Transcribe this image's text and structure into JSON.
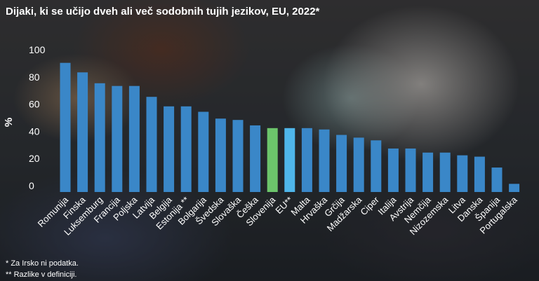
{
  "chart_data": {
    "type": "bar",
    "title": "Dijaki, ki se učijo dveh ali več sodobnih tujih jezikov, EU, 2022*",
    "ylabel": "%",
    "xlabel": "",
    "ylim": [
      0,
      100
    ],
    "yticks": [
      0,
      20,
      40,
      60,
      80,
      100
    ],
    "grid": false,
    "categories": [
      "Romunija",
      "Finska",
      "Luksemburg",
      "Francija",
      "Poljska",
      "Latvija",
      "Belgija",
      "Estonija **",
      "Bolgarija",
      "Švedska",
      "Slovaška",
      "Češka",
      "Slovenija",
      "EU**",
      "Malta",
      "Hrvaška",
      "Grčija",
      "Madžarska",
      "Ciper",
      "Italija",
      "Avstrija",
      "Nemčija",
      "Nizozemska",
      "Litva",
      "Danska",
      "Španija",
      "Portugalska"
    ],
    "values": [
      95,
      88,
      80,
      78,
      78,
      70,
      63,
      63,
      59,
      54,
      53,
      49,
      47,
      47,
      47,
      46,
      42,
      40,
      38,
      32,
      32,
      29,
      29,
      27,
      26,
      18,
      6
    ],
    "colors": {
      "default": "#3a87c8",
      "Slovenija": "#6cc56b",
      "EU**": "#4fb6ea"
    }
  },
  "footnotes": {
    "note1": "* Za Irsko ni podatka.",
    "note2": "** Razlike v definiciji."
  }
}
